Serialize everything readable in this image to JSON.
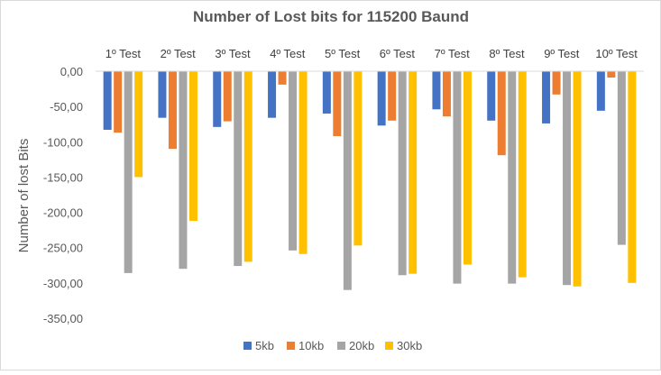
{
  "chart_data": {
    "type": "bar",
    "title": "Number of Lost bits for 115200 Baund",
    "xlabel": "",
    "ylabel": "Number of lost Bits",
    "categories": [
      "1º Test",
      "2º Test",
      "3º Test",
      "4º Test",
      "5º Test",
      "6º Test",
      "7º Test",
      "8º Test",
      "9º Test",
      "10º Test"
    ],
    "category_axis_position": "top",
    "ylim": [
      -350,
      0
    ],
    "yticks": [
      0,
      -50,
      -100,
      -150,
      -200,
      -250,
      -300,
      -350
    ],
    "ytick_labels": [
      "0,00",
      "-50,00",
      "-100,00",
      "-150,00",
      "-200,00",
      "-250,00",
      "-300,00",
      "-350,00"
    ],
    "grid": false,
    "legend_position": "bottom",
    "series": [
      {
        "name": "5kb",
        "color": "#4472C4",
        "values": [
          -83,
          -66,
          -79,
          -66,
          -60,
          -77,
          -54,
          -70,
          -74,
          -56
        ]
      },
      {
        "name": "10kb",
        "color": "#ED7D31",
        "values": [
          -87,
          -110,
          -71,
          -19,
          -92,
          -70,
          -64,
          -119,
          -33,
          -9
        ]
      },
      {
        "name": "20kb",
        "color": "#A5A5A5",
        "values": [
          -286,
          -280,
          -276,
          -254,
          -310,
          -289,
          -301,
          -301,
          -303,
          -246
        ]
      },
      {
        "name": "30kb",
        "color": "#FFC000",
        "values": [
          -150,
          -212,
          -270,
          -259,
          -247,
          -287,
          -274,
          -292,
          -305,
          -300
        ]
      }
    ]
  }
}
